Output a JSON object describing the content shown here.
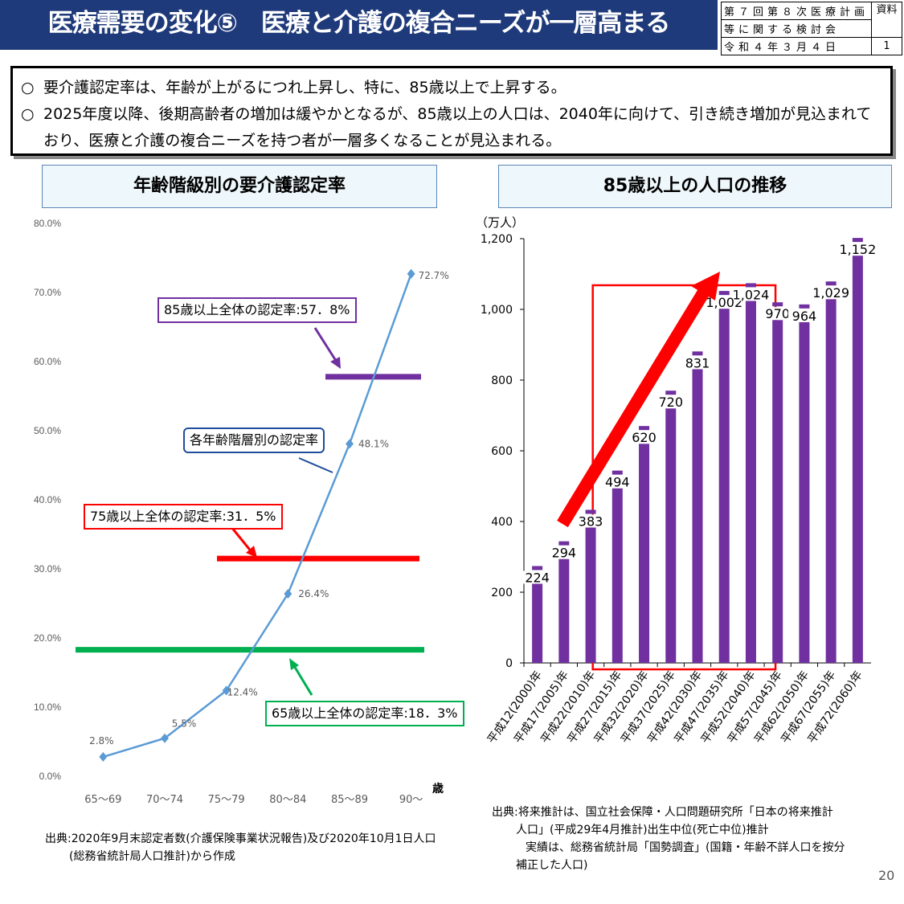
{
  "header": {
    "title": "医療需要の変化⑤　医療と介護の複合ニーズが一層高まる",
    "meta_line1": "第７回第８次医療計画",
    "meta_line2": "等に関する検討会",
    "meta_line3": "令和４年３月４日",
    "doc_label_1": "資料",
    "doc_label_2": "1"
  },
  "summary": {
    "bullet": "○",
    "line1": "要介護認定率は、年齢が上がるにつれ上昇し、特に、85歳以上で上昇する。",
    "line2": "2025年度以降、後期高齢者の増加は緩やかとなるが、85歳以上の人口は、2040年に向けて、引き続き増加が見込まれており、医療と介護の複合ニーズを持つ者が一層多くなることが見込まれる。"
  },
  "left_panel": {
    "title": "年齢階級別の要介護認定率",
    "callouts": {
      "c85": "85歳以上全体の認定率:57．8%",
      "c75": "75歳以上全体の認定率:31．5%",
      "c65": "65歳以上全体の認定率:18．3%",
      "series": "各年齢階層別の認定率"
    },
    "source_line1": "出典:2020年9月末認定者数(介護保険事業状況報告)及び2020年10月1日人口",
    "source_line2": "(総務省統計局人口推計)から作成"
  },
  "right_panel": {
    "title": "85歳以上の人口の推移",
    "unit": "（万人）",
    "source_line1": "出典:将来推計は、国立社会保障・人口問題研究所「日本の将来推計",
    "source_line2": "人口」(平成29年4月推計)出生中位(死亡中位)推計",
    "source_line3": "実績は、総務省統計局「国勢調査」(国籍・年齢不詳人口を按分",
    "source_line4": "補正した人口)"
  },
  "page_number": "20",
  "colors": {
    "header_bg": "#1f3a7a",
    "line": "#5b9bd5",
    "bar": "#7030a0",
    "level_85": "#7030a0",
    "level_75": "#ff0000",
    "level_65": "#00b050",
    "highlight": "#ff0000"
  },
  "chart_data": [
    {
      "type": "line",
      "categories": [
        "65～69",
        "70～74",
        "75～79",
        "80～84",
        "85～89",
        "90～"
      ],
      "series": [
        {
          "name": "各年齢階層別の認定率",
          "values": [
            2.8,
            5.5,
            12.4,
            26.4,
            48.1,
            72.7
          ]
        }
      ],
      "value_labels": [
        "2.8%",
        "5.5%",
        "12.4%",
        "26.4%",
        "48.1%",
        "72.7%"
      ],
      "reference_lines": [
        {
          "name": "85歳以上全体の認定率",
          "value": 57.8
        },
        {
          "name": "75歳以上全体の認定率",
          "value": 31.5
        },
        {
          "name": "65歳以上全体の認定率",
          "value": 18.3
        }
      ],
      "ylim": [
        0,
        80
      ],
      "yticks": [
        "0.0%",
        "10.0%",
        "20.0%",
        "30.0%",
        "40.0%",
        "50.0%",
        "60.0%",
        "70.0%",
        "80.0%"
      ],
      "xlabel": "歳",
      "grid": false
    },
    {
      "type": "bar",
      "categories": [
        "平成12(2000)年",
        "平成17(2005)年",
        "平成22(2010)年",
        "平成27(2015)年",
        "平成32(2020)年",
        "平成37(2025)年",
        "平成42(2030)年",
        "平成47(2035)年",
        "平成52(2040)年",
        "平成57(2045)年",
        "平成62(2050)年",
        "平成67(2055)年",
        "平成72(2060)年"
      ],
      "values": [
        224,
        294,
        383,
        494,
        620,
        720,
        831,
        1002,
        1024,
        970,
        964,
        1029,
        1152
      ],
      "value_labels": [
        "224",
        "294",
        "383",
        "494",
        "620",
        "720",
        "831",
        "1,002",
        "1,024",
        "970",
        "964",
        "1,029",
        "1,152"
      ],
      "ylim": [
        0,
        1200
      ],
      "yticks": [
        "0",
        "200",
        "400",
        "600",
        "800",
        "1,000",
        "1,200"
      ],
      "ylabel": "（万人）",
      "highlight_range": [
        "平成27(2015)年",
        "平成52(2040)年"
      ],
      "grid": false
    }
  ]
}
